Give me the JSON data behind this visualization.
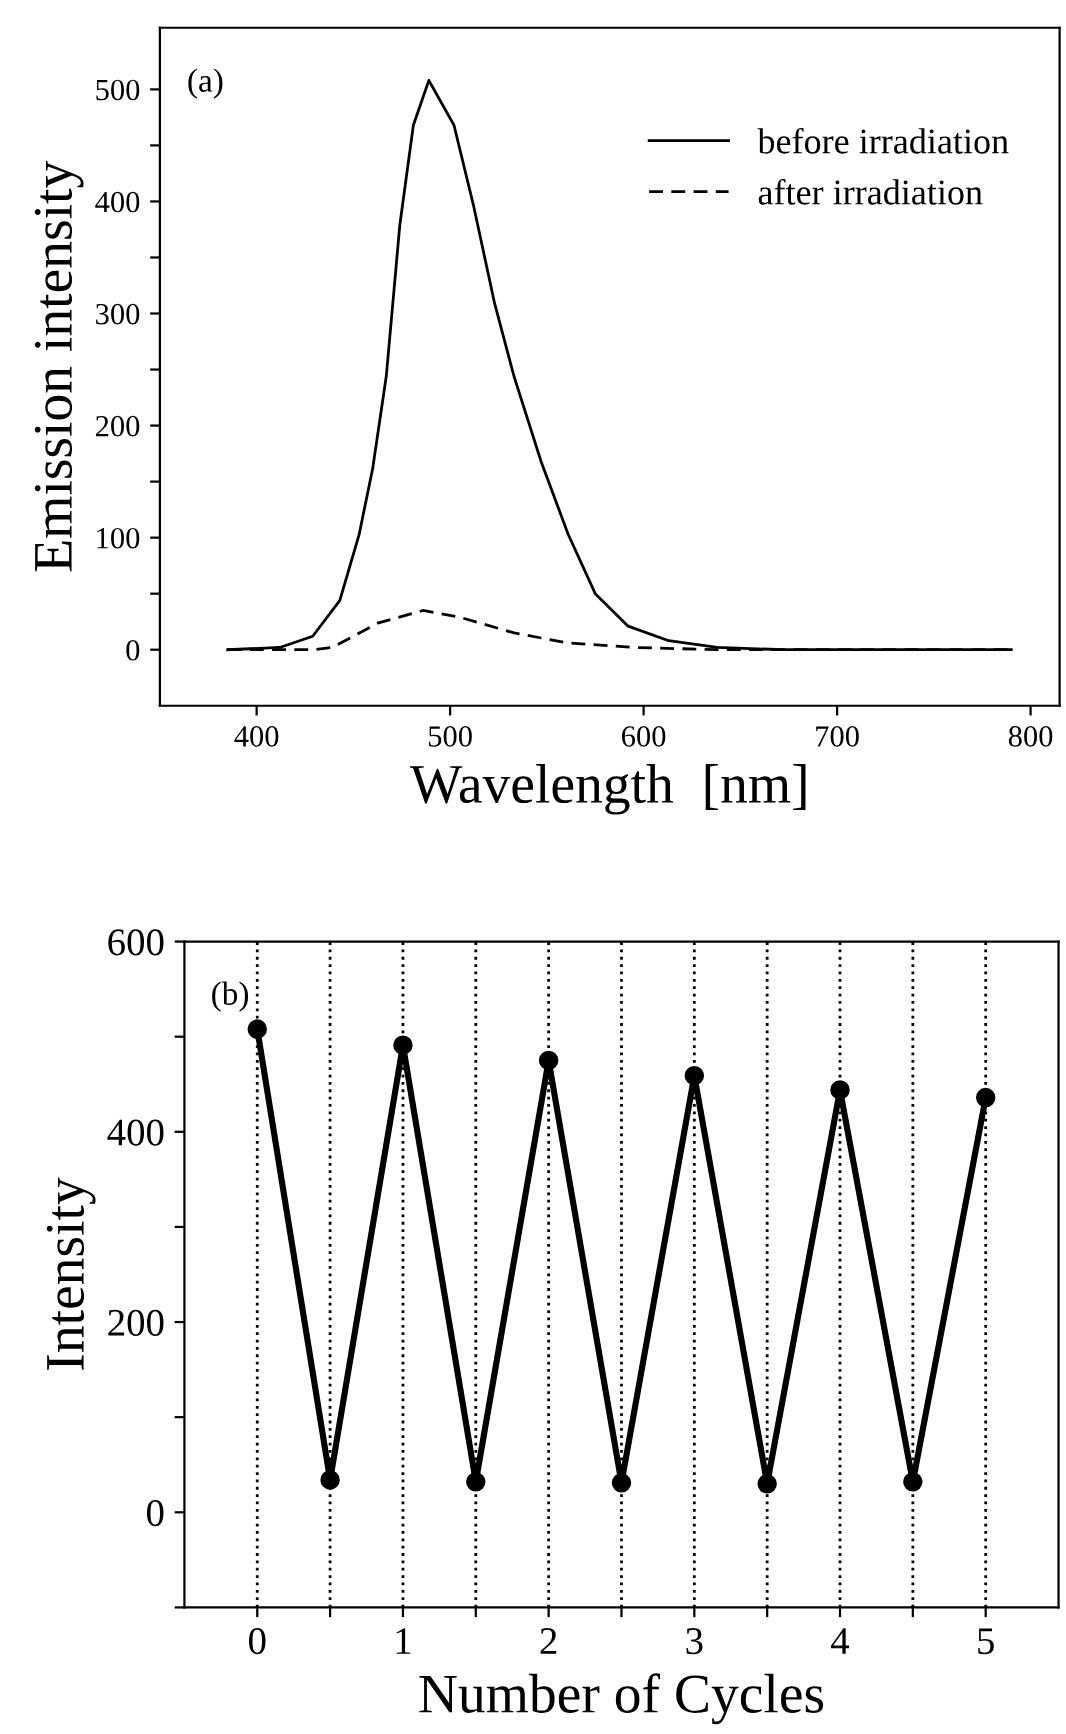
{
  "chart_data": [
    {
      "type": "line",
      "xlabel": "Wavelength  [nm]",
      "ylabel": "Emission intensity",
      "annotations": [
        "(a)"
      ],
      "series": [
        {
          "name": "before irradiation",
          "color": "#000000",
          "line_style": "solid",
          "x": [
            385,
            412,
            429,
            443,
            453,
            460,
            467,
            474,
            481,
            489,
            502,
            512,
            523,
            533,
            547,
            561,
            575,
            592,
            613,
            638,
            672,
            790
          ],
          "values": [
            0,
            2,
            12,
            44,
            103,
            162,
            244,
            379,
            468,
            508,
            468,
            397,
            309,
            244,
            168,
            103,
            50,
            21,
            8,
            2,
            0,
            0
          ]
        },
        {
          "name": "after irradiation",
          "color": "#000000",
          "line_style": "dashed",
          "x": [
            385,
            429,
            439,
            463,
            486,
            505,
            533,
            561,
            596,
            638,
            790
          ],
          "values": [
            0,
            0,
            2,
            24,
            35,
            29,
            15,
            6,
            2,
            0,
            0
          ]
        }
      ],
      "xlim": [
        350,
        815
      ],
      "ylim": [
        -50,
        555
      ],
      "xticks": [
        400,
        500,
        600,
        700,
        800
      ],
      "yticks": [
        0,
        {
          "value": 50,
          "label": null
        },
        100,
        {
          "value": 150,
          "label": null
        },
        200,
        {
          "value": 250,
          "label": null
        },
        300,
        {
          "value": 350,
          "label": null
        },
        400,
        {
          "value": 450,
          "label": null
        },
        500
      ],
      "legend": "top right",
      "grid": false
    },
    {
      "type": "line",
      "xlabel": "Number of Cycles",
      "ylabel": "Intensity",
      "annotations": [
        "(b)"
      ],
      "marker": "circle",
      "line_style": "solid",
      "x": [
        0,
        0.5,
        1,
        1.5,
        2,
        2.5,
        3,
        3.5,
        4,
        4.5,
        5
      ],
      "series": [
        {
          "color": "#000000",
          "values": [
            508,
            34,
            491,
            32,
            475,
            31,
            459,
            30,
            444,
            32,
            436
          ]
        }
      ],
      "xlim": [
        -0.5,
        5.5
      ],
      "ylim": [
        -100,
        600
      ],
      "xticks": [
        0,
        {
          "value": 0.5,
          "label": null
        },
        1,
        {
          "value": 1.5,
          "label": null
        },
        2,
        {
          "value": 2.5,
          "label": null
        },
        3,
        {
          "value": 3.5,
          "label": null
        },
        4,
        {
          "value": 4.5,
          "label": null
        },
        5
      ],
      "yticks": [
        {
          "value": -100,
          "label": null
        },
        0,
        {
          "value": 100,
          "label": null
        },
        200,
        {
          "value": 300,
          "label": null
        },
        400,
        {
          "value": 500,
          "label": null
        },
        600
      ],
      "grid": "x"
    }
  ]
}
